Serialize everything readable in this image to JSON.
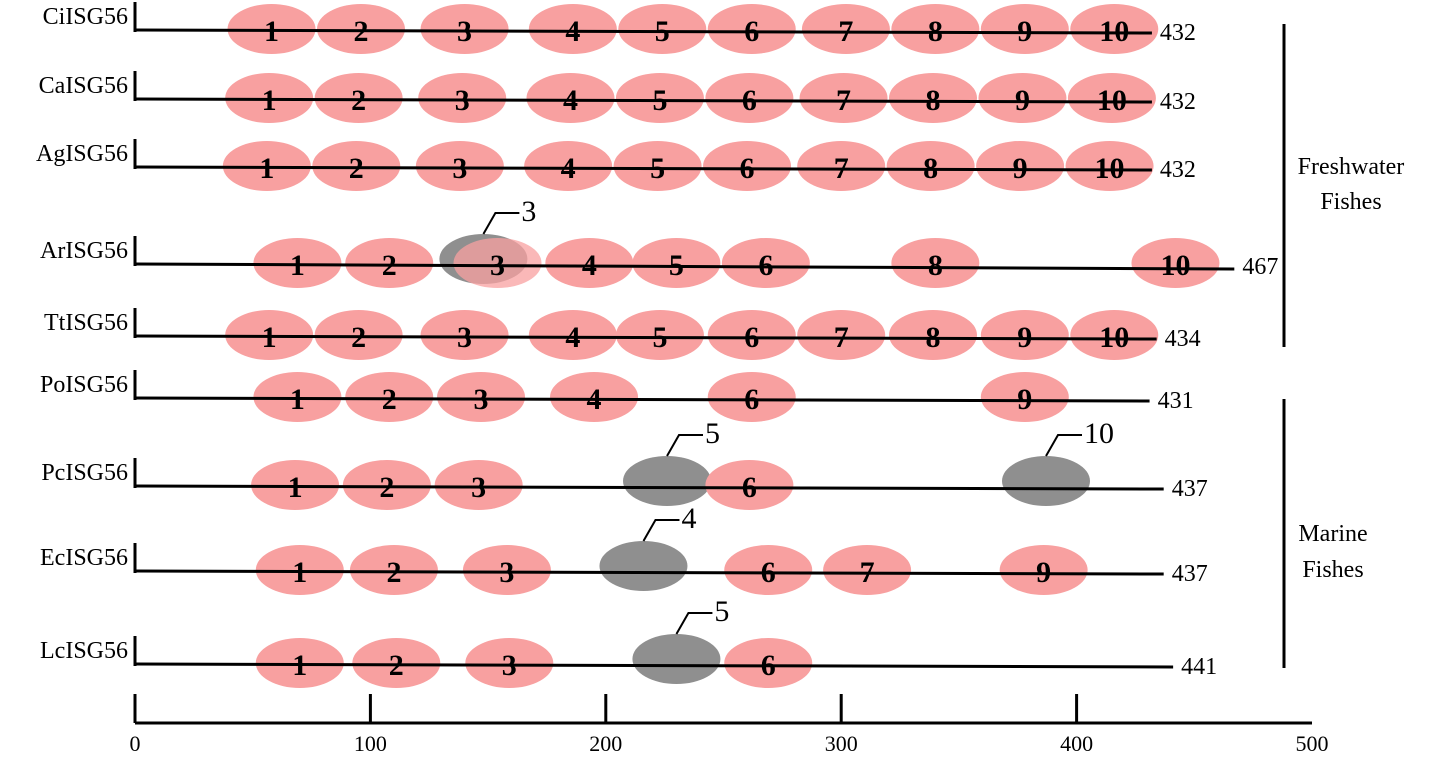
{
  "axis": {
    "min": 0,
    "max": 500,
    "ticks": [
      "0",
      "100",
      "200",
      "300",
      "400",
      "500"
    ]
  },
  "colors": {
    "motif": "#f8a0a0",
    "gray_motif": "#8f8f8f",
    "line": "#000000"
  },
  "groups": [
    {
      "lines": [
        "Freshwater",
        "Fishes"
      ]
    },
    {
      "lines": [
        "Marine",
        "Fishes"
      ]
    }
  ],
  "rows": [
    {
      "name": "CiISG56",
      "length": 432,
      "length_label": "432",
      "motifs": [
        {
          "n": "1",
          "pos": 58
        },
        {
          "n": "2",
          "pos": 96
        },
        {
          "n": "3",
          "pos": 140
        },
        {
          "n": "4",
          "pos": 186
        },
        {
          "n": "5",
          "pos": 224
        },
        {
          "n": "6",
          "pos": 262
        },
        {
          "n": "7",
          "pos": 302
        },
        {
          "n": "8",
          "pos": 340
        },
        {
          "n": "9",
          "pos": 378
        },
        {
          "n": "10",
          "pos": 416
        }
      ],
      "gray": []
    },
    {
      "name": "CaISG56",
      "length": 432,
      "length_label": "432",
      "motifs": [
        {
          "n": "1",
          "pos": 57
        },
        {
          "n": "2",
          "pos": 95
        },
        {
          "n": "3",
          "pos": 139
        },
        {
          "n": "4",
          "pos": 185
        },
        {
          "n": "5",
          "pos": 223
        },
        {
          "n": "6",
          "pos": 261
        },
        {
          "n": "7",
          "pos": 301
        },
        {
          "n": "8",
          "pos": 339
        },
        {
          "n": "9",
          "pos": 377
        },
        {
          "n": "10",
          "pos": 415
        }
      ],
      "gray": []
    },
    {
      "name": "AgISG56",
      "length": 432,
      "length_label": "432",
      "motifs": [
        {
          "n": "1",
          "pos": 56
        },
        {
          "n": "2",
          "pos": 94
        },
        {
          "n": "3",
          "pos": 138
        },
        {
          "n": "4",
          "pos": 184
        },
        {
          "n": "5",
          "pos": 222
        },
        {
          "n": "6",
          "pos": 260
        },
        {
          "n": "7",
          "pos": 300
        },
        {
          "n": "8",
          "pos": 338
        },
        {
          "n": "9",
          "pos": 376
        },
        {
          "n": "10",
          "pos": 414
        }
      ],
      "gray": []
    },
    {
      "name": "ArISG56",
      "length": 467,
      "length_label": "467",
      "motifs": [
        {
          "n": "1",
          "pos": 69
        },
        {
          "n": "2",
          "pos": 108
        },
        {
          "n": "3",
          "pos": 154
        },
        {
          "n": "4",
          "pos": 193
        },
        {
          "n": "5",
          "pos": 230
        },
        {
          "n": "6",
          "pos": 268
        },
        {
          "n": "8",
          "pos": 340
        },
        {
          "n": "10",
          "pos": 442
        }
      ],
      "gray": [
        {
          "n": "3",
          "pos": 148
        }
      ]
    },
    {
      "name": "TtISG56",
      "length": 434,
      "length_label": "434",
      "motifs": [
        {
          "n": "1",
          "pos": 57
        },
        {
          "n": "2",
          "pos": 95
        },
        {
          "n": "3",
          "pos": 140
        },
        {
          "n": "4",
          "pos": 186
        },
        {
          "n": "5",
          "pos": 223
        },
        {
          "n": "6",
          "pos": 262
        },
        {
          "n": "7",
          "pos": 300
        },
        {
          "n": "8",
          "pos": 339
        },
        {
          "n": "9",
          "pos": 378
        },
        {
          "n": "10",
          "pos": 416
        }
      ],
      "gray": []
    },
    {
      "name": "PoISG56",
      "length": 431,
      "length_label": "431",
      "motifs": [
        {
          "n": "1",
          "pos": 69
        },
        {
          "n": "2",
          "pos": 108
        },
        {
          "n": "3",
          "pos": 147
        },
        {
          "n": "4",
          "pos": 195
        },
        {
          "n": "6",
          "pos": 262
        },
        {
          "n": "9",
          "pos": 378
        }
      ],
      "gray": []
    },
    {
      "name": "PcISG56",
      "length": 437,
      "length_label": "437",
      "motifs": [
        {
          "n": "1",
          "pos": 68
        },
        {
          "n": "2",
          "pos": 107
        },
        {
          "n": "3",
          "pos": 146
        },
        {
          "n": "6",
          "pos": 261
        }
      ],
      "gray": [
        {
          "n": "5",
          "pos": 226
        },
        {
          "n": "10",
          "pos": 387
        }
      ]
    },
    {
      "name": "EcISG56",
      "length": 437,
      "length_label": "437",
      "motifs": [
        {
          "n": "1",
          "pos": 70
        },
        {
          "n": "2",
          "pos": 110
        },
        {
          "n": "3",
          "pos": 158
        },
        {
          "n": "6",
          "pos": 269
        },
        {
          "n": "7",
          "pos": 311
        },
        {
          "n": "9",
          "pos": 386
        }
      ],
      "gray": [
        {
          "n": "4",
          "pos": 216
        }
      ]
    },
    {
      "name": "LcISG56",
      "length": 441,
      "length_label": "441",
      "motifs": [
        {
          "n": "1",
          "pos": 70
        },
        {
          "n": "2",
          "pos": 111
        },
        {
          "n": "3",
          "pos": 159
        },
        {
          "n": "6",
          "pos": 269
        }
      ],
      "gray": [
        {
          "n": "5",
          "pos": 230
        }
      ]
    }
  ]
}
